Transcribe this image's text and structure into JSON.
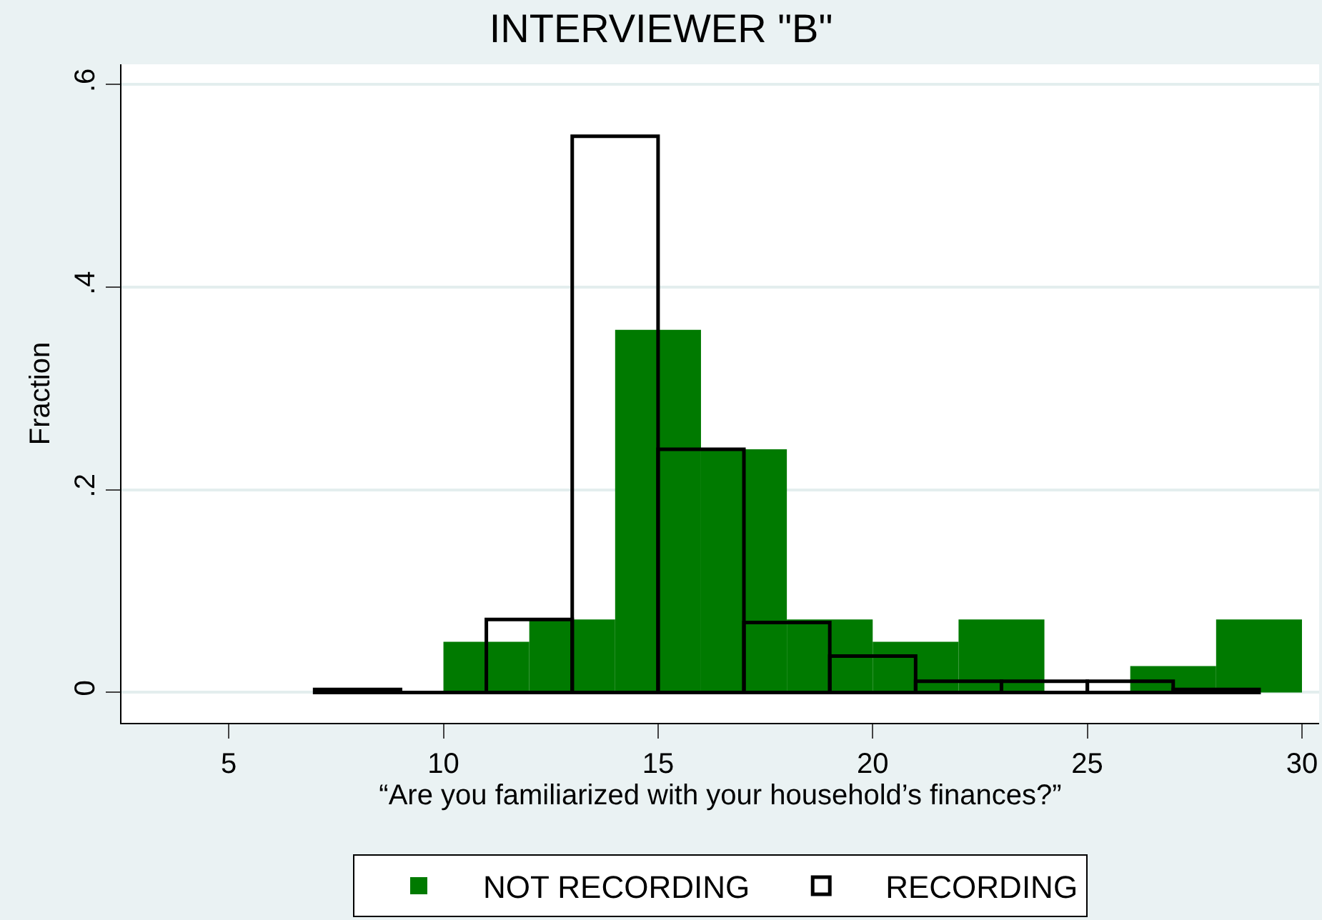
{
  "chart_data": {
    "type": "bar",
    "title": "INTERVIEWER \"B\"",
    "xlabel": "“Are you familiarized with your household’s finances?”",
    "ylabel": "Fraction",
    "series": [
      {
        "name": "NOT RECORDING",
        "color": "#007a00",
        "x": [
          11,
          13,
          15,
          17,
          19,
          21,
          23,
          25,
          27,
          29
        ],
        "values": [
          0.05,
          0.072,
          0.358,
          0.24,
          0.072,
          0.05,
          0.072,
          0,
          0.026,
          0.072
        ]
      },
      {
        "name": "RECORDING",
        "color": "#000000",
        "x": [
          8,
          10,
          12,
          14,
          16,
          18,
          20,
          22,
          24,
          26,
          28
        ],
        "values": [
          0.003,
          0,
          0.072,
          0.549,
          0.24,
          0.069,
          0.036,
          0.011,
          0.011,
          0.011,
          0.003
        ]
      }
    ],
    "xlim": [
      2.5,
      30.4
    ],
    "xticks": [
      5,
      10,
      15,
      20,
      25,
      30
    ],
    "ylim": [
      -0.03,
      0.62
    ],
    "yticks": [
      {
        "value": 0,
        "label": "0"
      },
      {
        "value": 0.2,
        "label": ".2"
      },
      {
        "value": 0.4,
        "label": ".4"
      },
      {
        "value": 0.6,
        "label": ".6"
      }
    ],
    "grid": "y",
    "legend": "bottom"
  }
}
